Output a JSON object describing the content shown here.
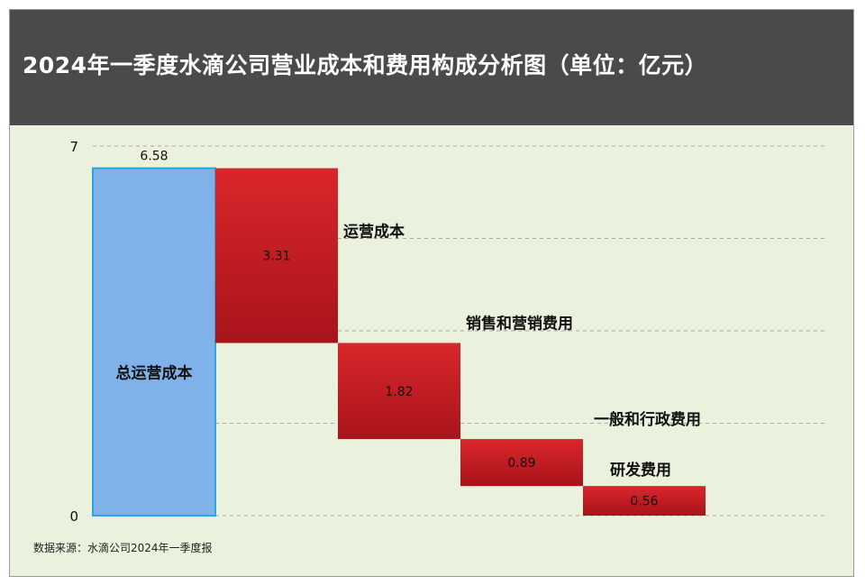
{
  "title": "2024年一季度水滴公司营业成本和费用构成分析图（单位：亿元）",
  "source": "数据来源：水滴公司2024年一季度报",
  "colors": {
    "total": "#7fb2e8",
    "total_edge": "#2aa6e0",
    "cost": "#d9262b",
    "cost_dark": "#a8141a",
    "background": "#eaf1dc",
    "header": "#4a4a4a"
  },
  "chart_data": {
    "type": "waterfall",
    "unit": "亿元",
    "yticks": [
      0,
      7
    ],
    "ylim": [
      0,
      7
    ],
    "total": {
      "label": "总运营成本",
      "value": 6.58,
      "value_label": "6.58"
    },
    "steps": [
      {
        "label": "运营成本",
        "value": 3.31,
        "value_label": "3.31"
      },
      {
        "label": "销售和营销费用",
        "value": 1.82,
        "value_label": "1.82"
      },
      {
        "label": "一般和行政费用",
        "value": 0.89,
        "value_label": "0.89"
      },
      {
        "label": "研发费用",
        "value": 0.56,
        "value_label": "0.56"
      }
    ]
  }
}
